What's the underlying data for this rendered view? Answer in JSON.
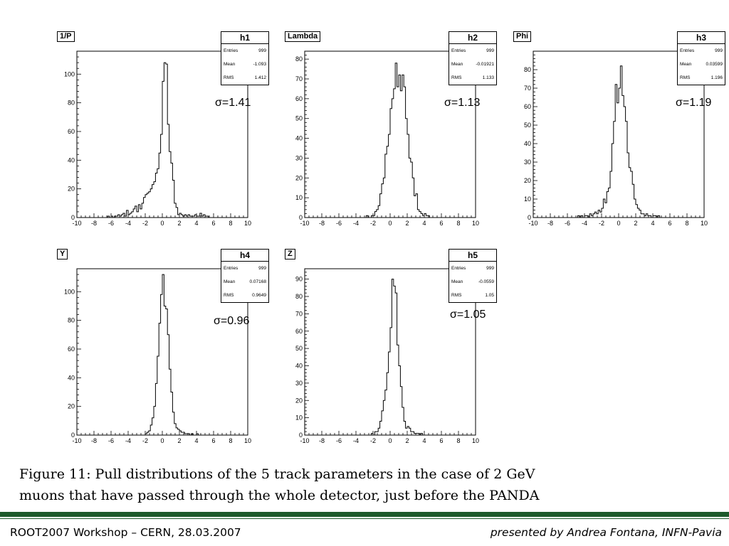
{
  "chart_data": [
    {
      "type": "histogram",
      "variable": "1/P",
      "stats": {
        "name": "h1",
        "entries_label": "Entries",
        "entries": "999",
        "mean_label": "Mean",
        "mean": "-1.093",
        "rms_label": "RMS",
        "rms": "1.412"
      },
      "sigma_label": "σ=1.41",
      "xlim": [
        -10,
        10
      ],
      "ylim": [
        0,
        116
      ],
      "xticks": [
        "-10",
        "-8",
        "-6",
        "-4",
        "-2",
        "0",
        "2",
        "4",
        "6",
        "8",
        "10"
      ],
      "yticks": [
        "0",
        "20",
        "40",
        "60",
        "80",
        "100"
      ],
      "ytick_values": [
        0,
        20,
        40,
        60,
        80,
        100
      ],
      "bin_start": -10,
      "bin_width": 0.2,
      "counts": [
        0,
        0,
        0,
        0,
        0,
        0,
        0,
        0,
        0,
        0,
        0,
        0,
        0,
        0,
        0,
        0,
        0,
        0,
        1,
        0,
        1,
        0,
        1,
        1,
        2,
        1,
        2,
        3,
        1,
        5,
        2,
        3,
        4,
        6,
        8,
        4,
        9,
        6,
        10,
        14,
        16,
        17,
        18,
        20,
        23,
        25,
        31,
        34,
        45,
        58,
        95,
        108,
        107,
        65,
        46,
        38,
        26,
        10,
        7,
        2,
        3,
        2,
        1,
        2,
        1,
        2,
        1,
        1,
        1,
        2,
        1,
        1,
        3,
        1,
        2,
        1,
        1,
        0,
        0,
        0,
        0,
        0,
        0,
        0,
        0,
        0,
        0,
        0,
        0,
        0,
        0,
        0,
        0,
        0,
        0,
        0,
        0,
        0,
        0,
        0
      ]
    },
    {
      "type": "histogram",
      "variable": "Lambda",
      "stats": {
        "name": "h2",
        "entries_label": "Entries",
        "entries": "999",
        "mean_label": "Mean",
        "mean": "-0.01921",
        "rms_label": "RMS",
        "rms": "1.133"
      },
      "sigma_label": "σ=1.13",
      "xlim": [
        -10,
        10
      ],
      "ylim": [
        0,
        84
      ],
      "xticks": [
        "-10",
        "-8",
        "-6",
        "-4",
        "-2",
        "0",
        "2",
        "4",
        "6",
        "8",
        "10"
      ],
      "yticks": [
        "0",
        "10",
        "20",
        "30",
        "40",
        "50",
        "60",
        "70",
        "80"
      ],
      "ytick_values": [
        0,
        10,
        20,
        30,
        40,
        50,
        60,
        70,
        80
      ],
      "bin_start": -10,
      "bin_width": 0.2,
      "counts": [
        0,
        0,
        0,
        0,
        0,
        0,
        0,
        0,
        0,
        0,
        0,
        0,
        0,
        0,
        0,
        0,
        0,
        0,
        0,
        0,
        0,
        0,
        0,
        0,
        0,
        0,
        0,
        0,
        0,
        0,
        0,
        0,
        0,
        0,
        0,
        0,
        1,
        0,
        0,
        1,
        1,
        3,
        4,
        6,
        12,
        17,
        20,
        32,
        36,
        42,
        55,
        60,
        65,
        78,
        66,
        72,
        64,
        72,
        66,
        50,
        42,
        30,
        28,
        20,
        11,
        12,
        4,
        3,
        2,
        1,
        2,
        1,
        1,
        0,
        0,
        0,
        0,
        0,
        0,
        0,
        0,
        0,
        0,
        0,
        0,
        0,
        0,
        0,
        0,
        0,
        0,
        0,
        0,
        0,
        0,
        0,
        0,
        0,
        0,
        0
      ]
    },
    {
      "type": "histogram",
      "variable": "Phi",
      "stats": {
        "name": "h3",
        "entries_label": "Entries",
        "entries": "999",
        "mean_label": "Mean",
        "mean": "0.03599",
        "rms_label": "RMS",
        "rms": "1.196"
      },
      "sigma_label": "σ=1.19",
      "xlim": [
        -10,
        10
      ],
      "ylim": [
        0,
        90
      ],
      "xticks": [
        "-10",
        "-8",
        "-6",
        "-4",
        "-2",
        "0",
        "2",
        "4",
        "6",
        "8",
        "10"
      ],
      "yticks": [
        "0",
        "10",
        "20",
        "30",
        "40",
        "50",
        "60",
        "70",
        "80"
      ],
      "ytick_values": [
        0,
        10,
        20,
        30,
        40,
        50,
        60,
        70,
        80
      ],
      "bin_start": -10,
      "bin_width": 0.2,
      "counts": [
        0,
        0,
        0,
        0,
        0,
        0,
        0,
        0,
        0,
        0,
        0,
        0,
        0,
        0,
        0,
        0,
        0,
        0,
        0,
        0,
        0,
        0,
        0,
        0,
        0,
        0,
        1,
        0,
        1,
        0,
        1,
        1,
        0,
        2,
        1,
        2,
        3,
        2,
        4,
        3,
        5,
        10,
        8,
        14,
        16,
        25,
        40,
        52,
        72,
        62,
        70,
        82,
        66,
        60,
        52,
        35,
        27,
        25,
        18,
        10,
        7,
        5,
        4,
        2,
        2,
        1,
        2,
        1,
        1,
        0,
        1,
        1,
        0,
        1,
        0,
        0,
        0,
        0,
        0,
        0,
        0,
        0,
        0,
        0,
        0,
        0,
        0,
        0,
        0,
        0,
        0,
        0,
        0,
        0,
        0,
        0,
        0,
        0,
        0,
        0
      ]
    },
    {
      "type": "histogram",
      "variable": "Y",
      "stats": {
        "name": "h4",
        "entries_label": "Entries",
        "entries": "999",
        "mean_label": "Mean",
        "mean": "0.07168",
        "rms_label": "RMS",
        "rms": "0.9649"
      },
      "sigma_label": "σ=0.96",
      "xlim": [
        -10,
        10
      ],
      "ylim": [
        0,
        116
      ],
      "xticks": [
        "-10",
        "-8",
        "-6",
        "-4",
        "-2",
        "0",
        "2",
        "4",
        "6",
        "8",
        "10"
      ],
      "yticks": [
        "0",
        "20",
        "40",
        "60",
        "80",
        "100"
      ],
      "ytick_values": [
        0,
        20,
        40,
        60,
        80,
        100
      ],
      "bin_start": -10,
      "bin_width": 0.2,
      "counts": [
        0,
        0,
        0,
        0,
        0,
        0,
        0,
        0,
        0,
        0,
        0,
        0,
        0,
        0,
        0,
        0,
        0,
        0,
        0,
        0,
        0,
        0,
        0,
        0,
        0,
        0,
        0,
        0,
        0,
        0,
        0,
        0,
        0,
        0,
        0,
        0,
        0,
        0,
        0,
        0,
        1,
        2,
        3,
        7,
        12,
        20,
        36,
        55,
        78,
        98,
        112,
        90,
        88,
        70,
        46,
        30,
        16,
        8,
        5,
        4,
        3,
        2,
        2,
        1,
        1,
        1,
        0,
        1,
        0,
        0,
        1,
        0,
        0,
        0,
        0,
        0,
        0,
        0,
        0,
        0,
        0,
        0,
        0,
        0,
        0,
        0,
        0,
        0,
        0,
        0,
        0,
        0,
        0,
        0,
        0,
        0,
        0,
        0,
        0,
        0
      ]
    },
    {
      "type": "histogram",
      "variable": "Z",
      "stats": {
        "name": "h5",
        "entries_label": "Entries",
        "entries": "999",
        "mean_label": "Mean",
        "mean": "-0.0559",
        "rms_label": "RMS",
        "rms": "1.05"
      },
      "sigma_label": "σ=1.05",
      "xlim": [
        -10,
        10
      ],
      "ylim": [
        0,
        96
      ],
      "xticks": [
        "-10",
        "-8",
        "-6",
        "-4",
        "-2",
        "0",
        "2",
        "4",
        "6",
        "8",
        "10"
      ],
      "yticks": [
        "0",
        "10",
        "20",
        "30",
        "40",
        "50",
        "60",
        "70",
        "80",
        "90"
      ],
      "ytick_values": [
        0,
        10,
        20,
        30,
        40,
        50,
        60,
        70,
        80,
        90
      ],
      "bin_start": -10,
      "bin_width": 0.2,
      "counts": [
        0,
        0,
        0,
        0,
        0,
        0,
        0,
        0,
        0,
        0,
        0,
        0,
        0,
        0,
        0,
        0,
        0,
        0,
        0,
        0,
        0,
        0,
        0,
        0,
        0,
        0,
        0,
        0,
        0,
        0,
        0,
        0,
        0,
        0,
        0,
        0,
        0,
        0,
        0,
        1,
        0,
        2,
        2,
        4,
        8,
        14,
        20,
        26,
        36,
        48,
        62,
        90,
        86,
        82,
        52,
        40,
        28,
        16,
        8,
        4,
        5,
        4,
        2,
        2,
        1,
        1,
        1,
        0,
        1,
        0,
        0,
        0,
        0,
        0,
        0,
        0,
        0,
        0,
        0,
        0,
        0,
        0,
        0,
        0,
        0,
        0,
        0,
        0,
        0,
        0,
        0,
        0,
        0,
        0,
        0,
        0,
        0,
        0,
        0,
        0
      ]
    }
  ],
  "caption": {
    "line1": "Figure 11: Pull distributions of the 5 track parameters in the case of 2 GeV",
    "line2": "muons that have passed through the whole detector, just before the PANDA"
  },
  "footer": {
    "left": "ROOT2007 Workshop – CERN, 28.03.2007",
    "right": "presented by Andrea Fontana, INFN-Pavia",
    "divider_color": "#1d5a2b"
  }
}
